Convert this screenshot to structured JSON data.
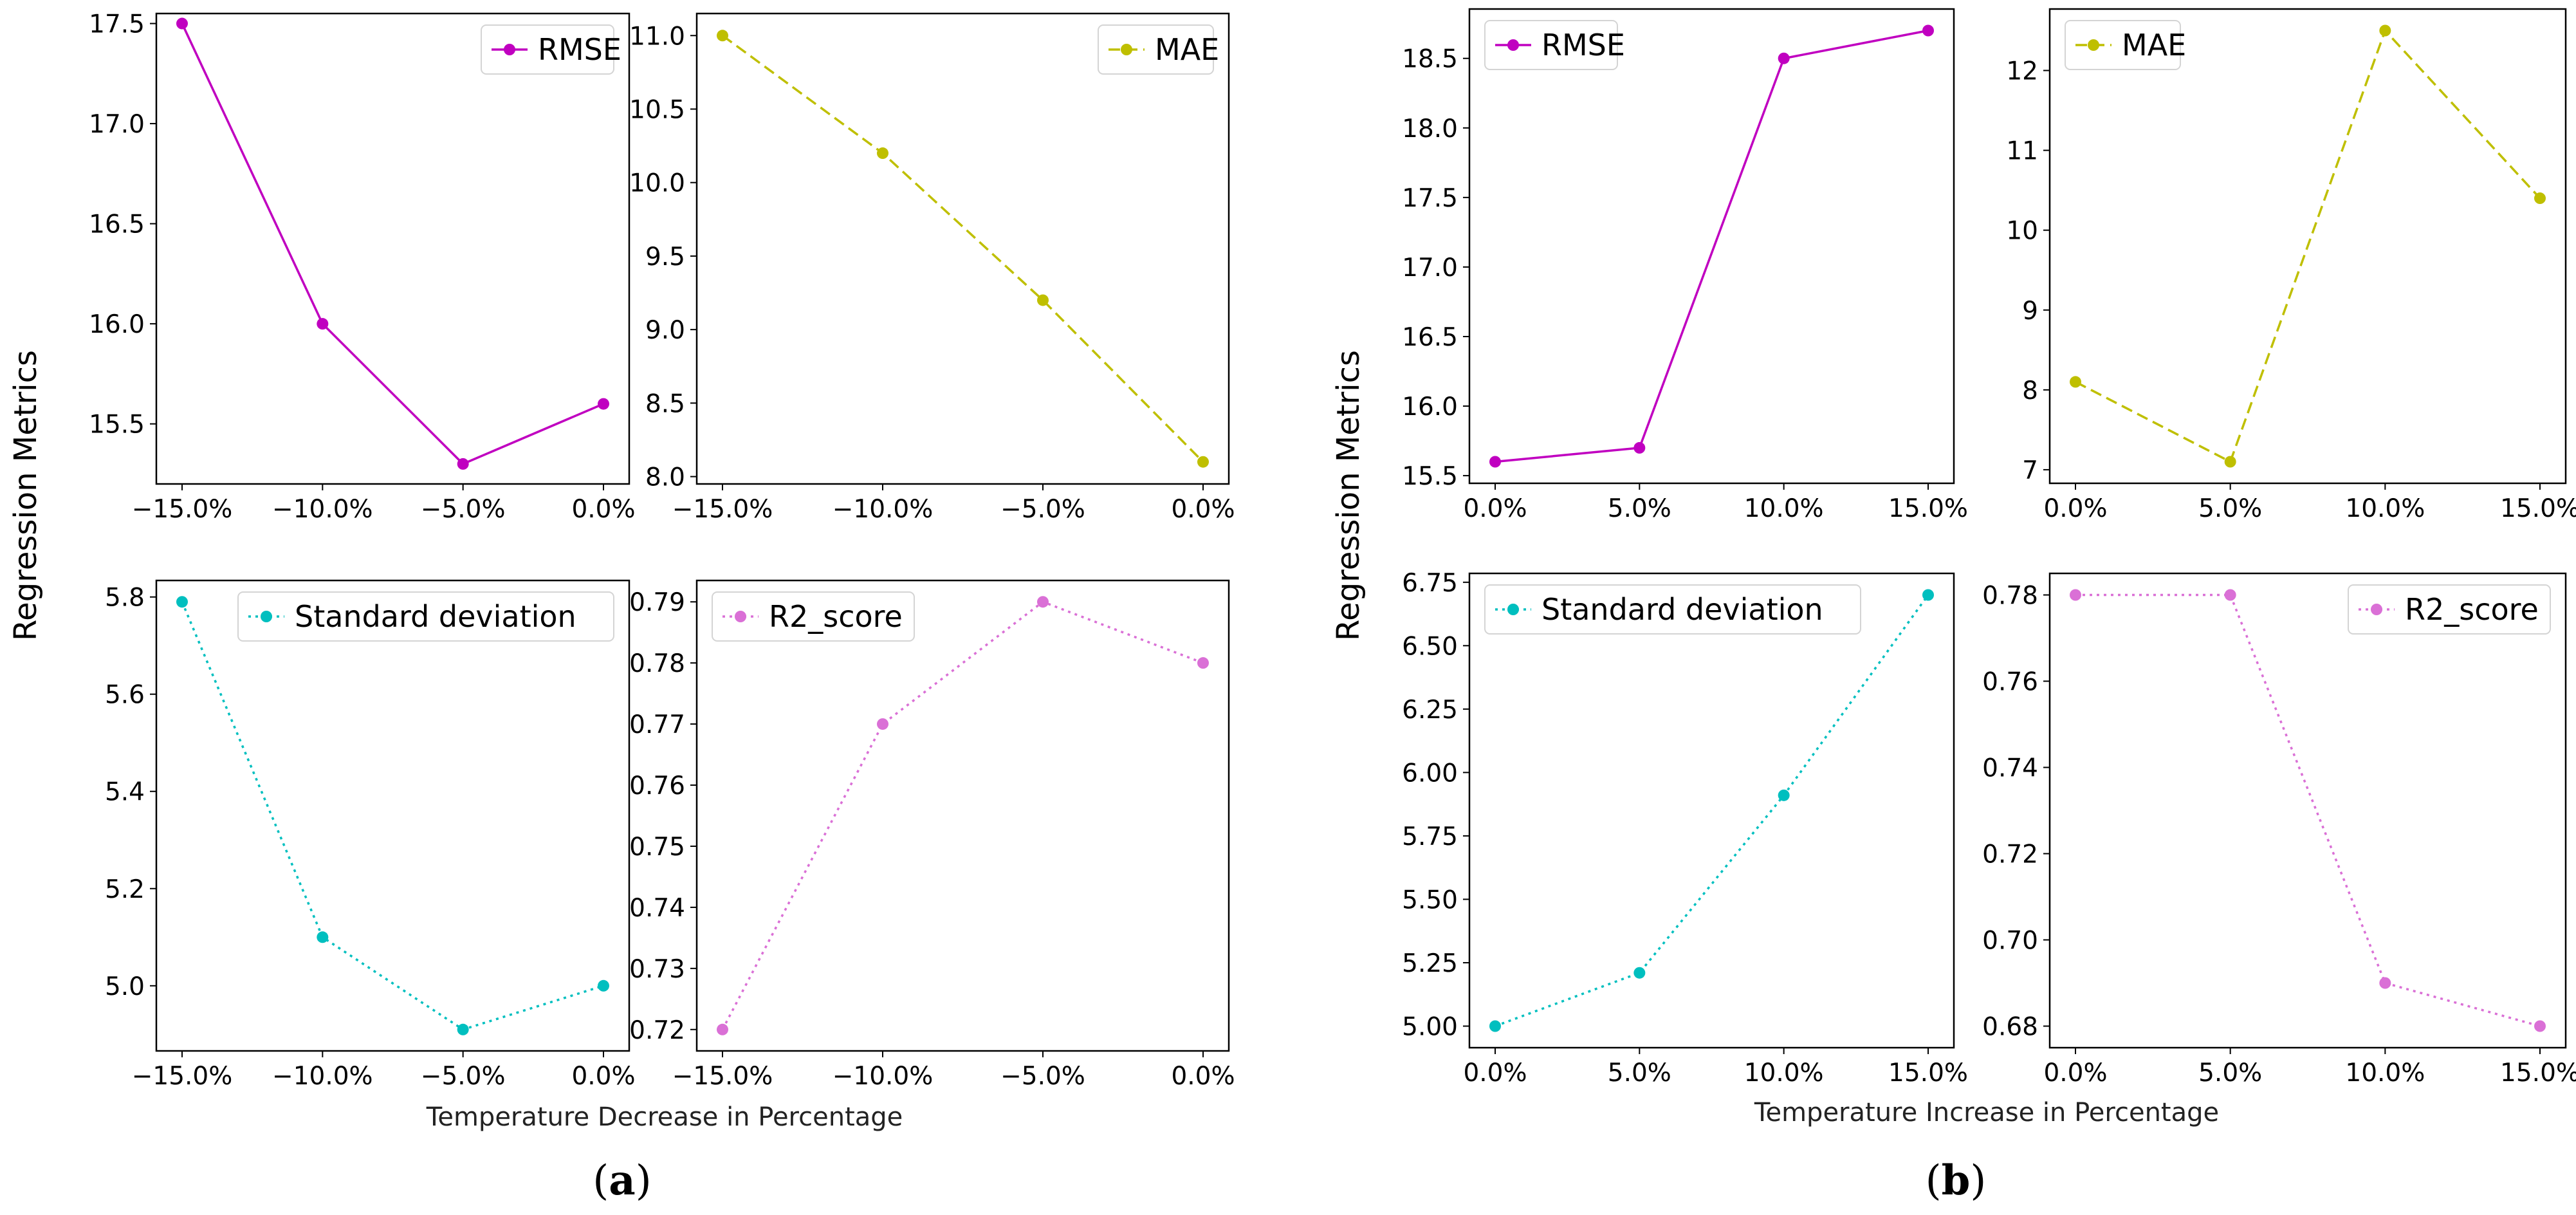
{
  "panels": [
    {
      "id": "a",
      "paren_open": "(",
      "letter": "a",
      "paren_close": ")",
      "ylabel": "Regression Metrics",
      "xlabel": "Temperature Decrease in Percentage"
    },
    {
      "id": "b",
      "paren_open": "(",
      "letter": "b",
      "paren_close": ")",
      "ylabel": "Regression Metrics",
      "xlabel": "Temperature Increase in Percentage"
    }
  ],
  "chart_data": [
    {
      "type": "line",
      "panel": "a",
      "categories": [
        "−15.0%",
        "−10.0%",
        "−5.0%",
        "0.0%"
      ],
      "series": [
        {
          "name": "RMSE",
          "values": [
            17.5,
            16.0,
            15.3,
            15.6
          ]
        }
      ],
      "yticks": [
        "15.5",
        "16.0",
        "16.5",
        "17.0",
        "17.5"
      ],
      "ylim": [
        15.2,
        17.55
      ],
      "color": "#c000c0",
      "dash": "solid",
      "legend": "top-right"
    },
    {
      "type": "line",
      "panel": "a",
      "categories": [
        "−15.0%",
        "−10.0%",
        "−5.0%",
        "0.0%"
      ],
      "series": [
        {
          "name": "MAE",
          "values": [
            11.0,
            10.2,
            9.2,
            8.1
          ]
        }
      ],
      "yticks": [
        "8.0",
        "8.5",
        "9.0",
        "9.5",
        "10.0",
        "10.5",
        "11.0"
      ],
      "ylim": [
        7.95,
        11.15
      ],
      "color": "#bfbf00",
      "dash": "dashed",
      "legend": "top-right"
    },
    {
      "type": "line",
      "panel": "a",
      "categories": [
        "−15.0%",
        "−10.0%",
        "−5.0%",
        "0.0%"
      ],
      "series": [
        {
          "name": "Standard deviation",
          "values": [
            5.79,
            5.1,
            4.91,
            5.0
          ]
        }
      ],
      "yticks": [
        "5.0",
        "5.2",
        "5.4",
        "5.6",
        "5.8"
      ],
      "ylim": [
        4.866,
        5.834
      ],
      "color": "#00bfbf",
      "dash": "dotted",
      "legend": "top-right"
    },
    {
      "type": "line",
      "panel": "a",
      "categories": [
        "−15.0%",
        "−10.0%",
        "−5.0%",
        "0.0%"
      ],
      "series": [
        {
          "name": "R2_score",
          "values": [
            0.72,
            0.77,
            0.79,
            0.78
          ]
        }
      ],
      "yticks": [
        "0.72",
        "0.73",
        "0.74",
        "0.75",
        "0.76",
        "0.77",
        "0.78",
        "0.79"
      ],
      "ylim": [
        0.7165,
        0.7935
      ],
      "color": "#da70d6",
      "dash": "dotted",
      "legend": "top-left"
    },
    {
      "type": "line",
      "panel": "b",
      "categories": [
        "0.0%",
        "5.0%",
        "10.0%",
        "15.0%"
      ],
      "series": [
        {
          "name": "RMSE",
          "values": [
            15.6,
            15.7,
            18.5,
            18.7
          ]
        }
      ],
      "yticks": [
        "15.5",
        "16.0",
        "16.5",
        "17.0",
        "17.5",
        "18.0",
        "18.5"
      ],
      "ylim": [
        15.445,
        18.855
      ],
      "color": "#c000c0",
      "dash": "solid",
      "legend": "top-left"
    },
    {
      "type": "line",
      "panel": "b",
      "categories": [
        "0.0%",
        "5.0%",
        "10.0%",
        "15.0%"
      ],
      "series": [
        {
          "name": "MAE",
          "values": [
            8.1,
            7.1,
            12.5,
            10.4
          ]
        }
      ],
      "yticks": [
        "7",
        "8",
        "9",
        "10",
        "11",
        "12"
      ],
      "ylim": [
        6.83,
        12.77
      ],
      "color": "#bfbf00",
      "dash": "dashed",
      "legend": "top-left"
    },
    {
      "type": "line",
      "panel": "b",
      "categories": [
        "0.0%",
        "5.0%",
        "10.0%",
        "15.0%"
      ],
      "series": [
        {
          "name": "Standard deviation",
          "values": [
            5.0,
            5.21,
            5.91,
            6.7
          ]
        }
      ],
      "yticks": [
        "5.00",
        "5.25",
        "5.50",
        "5.75",
        "6.00",
        "6.25",
        "6.50",
        "6.75"
      ],
      "ylim": [
        4.915,
        6.785
      ],
      "color": "#00bfbf",
      "dash": "dotted",
      "legend": "top-left"
    },
    {
      "type": "line",
      "panel": "b",
      "categories": [
        "0.0%",
        "5.0%",
        "10.0%",
        "15.0%"
      ],
      "series": [
        {
          "name": "R2_score",
          "values": [
            0.78,
            0.78,
            0.69,
            0.68
          ]
        }
      ],
      "yticks": [
        "0.68",
        "0.70",
        "0.72",
        "0.74",
        "0.76",
        "0.78"
      ],
      "ylim": [
        0.675,
        0.785
      ],
      "color": "#da70d6",
      "dash": "dotted",
      "legend": "top-right"
    }
  ]
}
